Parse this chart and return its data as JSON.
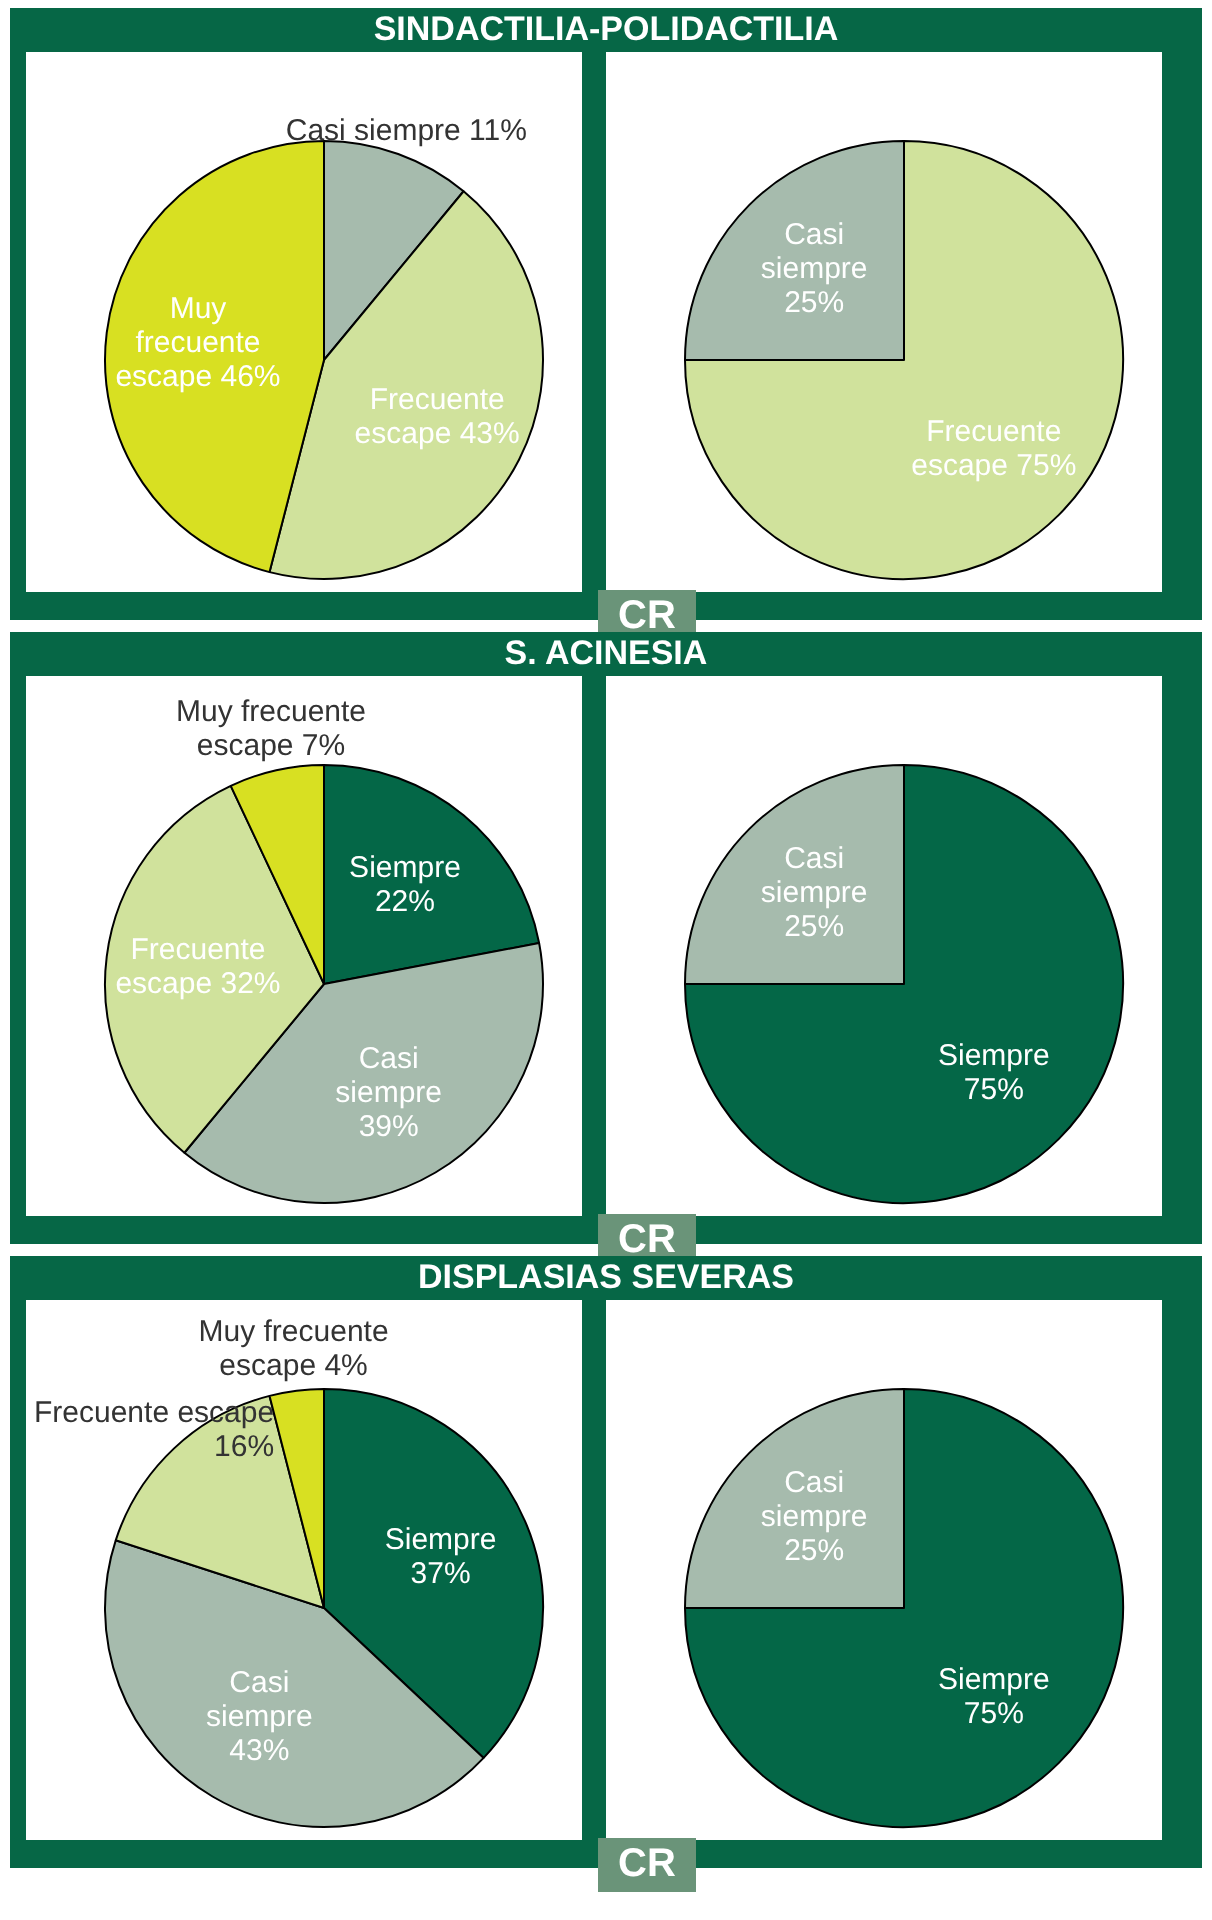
{
  "chart_data": [
    {
      "type": "pie",
      "title": "SINDACTILIA-POLIDACTILIA",
      "categories": [
        "Casi siempre",
        "Frecuente escape",
        "Muy frecuente escape"
      ],
      "values": [
        11,
        43,
        46
      ],
      "colors": [
        "#a6bbad",
        "#d0e29c",
        "#d8e022"
      ],
      "value_labels": [
        "11%",
        "43%",
        "46%"
      ]
    },
    {
      "type": "pie",
      "categories": [
        "Frecuente escape",
        "Casi siempre"
      ],
      "values": [
        75,
        25
      ],
      "colors": [
        "#d0e29c",
        "#a6bbad"
      ],
      "value_labels": [
        "75%",
        "25%"
      ],
      "annotations": [
        "CR"
      ]
    },
    {
      "type": "pie",
      "title": "S. ACINESIA",
      "categories": [
        "Siempre",
        "Casi siempre",
        "Frecuente escape",
        "Muy frecuente escape"
      ],
      "values": [
        22,
        39,
        32,
        7
      ],
      "colors": [
        "#046747",
        "#a6bbad",
        "#d0e29c",
        "#d8e022"
      ],
      "value_labels": [
        "22%",
        "39%",
        "32%",
        "7%"
      ]
    },
    {
      "type": "pie",
      "categories": [
        "Siempre",
        "Casi siempre"
      ],
      "values": [
        75,
        25
      ],
      "colors": [
        "#046747",
        "#a6bbad"
      ],
      "value_labels": [
        "75%",
        "25%"
      ],
      "annotations": [
        "CR"
      ]
    },
    {
      "type": "pie",
      "title": "DISPLASIAS SEVERAS",
      "categories": [
        "Siempre",
        "Casi siempre",
        "Frecuente escape",
        "Muy frecuente escape"
      ],
      "values": [
        37,
        43,
        16,
        4
      ],
      "colors": [
        "#046747",
        "#a6bbad",
        "#d0e29c",
        "#d8e022"
      ],
      "value_labels": [
        "37%",
        "43%",
        "16%",
        "4%"
      ]
    },
    {
      "type": "pie",
      "categories": [
        "Siempre",
        "Casi siempre"
      ],
      "values": [
        75,
        25
      ],
      "colors": [
        "#046747",
        "#a6bbad"
      ],
      "value_labels": [
        "75%",
        "25%"
      ],
      "annotations": [
        "CR"
      ]
    }
  ]
}
